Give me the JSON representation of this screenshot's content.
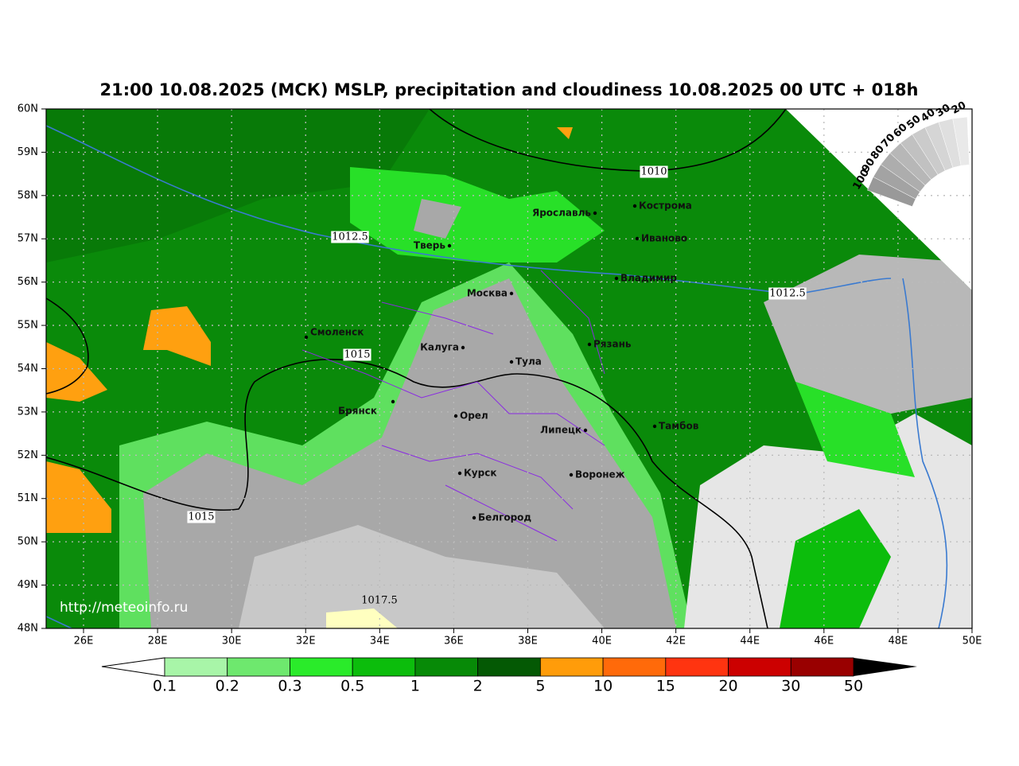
{
  "header": {
    "title": "21:00 10.08.2025 (МСК) MSLP, precipitation and cloudiness 10.08.2025 00 UTC + 018h"
  },
  "map": {
    "lat_ticks": [
      "48N",
      "49N",
      "50N",
      "51N",
      "52N",
      "53N",
      "54N",
      "55N",
      "56N",
      "57N",
      "58N",
      "59N",
      "60N"
    ],
    "lon_ticks": [
      "26E",
      "28E",
      "30E",
      "32E",
      "34E",
      "36E",
      "38E",
      "40E",
      "42E",
      "44E",
      "46E",
      "48E",
      "50E"
    ],
    "isobar_labels": [
      "1010",
      "1012.5",
      "1012.5",
      "1015",
      "1015",
      "1017.5"
    ],
    "cities": [
      "Ярославль",
      "Кострома",
      "Иваново",
      "Тверь",
      "Владимир",
      "Москва",
      "Смоленск",
      "Рязань",
      "Калуга",
      "Тула",
      "Брянск",
      "Орел",
      "Липецк",
      "Тамбов",
      "Курск",
      "Воронеж",
      "Белгород"
    ],
    "watermark": "http://meteoinfo.ru"
  },
  "cloud_scale": {
    "labels": [
      "100",
      "90",
      "80",
      "70",
      "60",
      "50",
      "40",
      "30",
      "20"
    ]
  },
  "colorbar": {
    "labels": [
      "0.1",
      "0.2",
      "0.3",
      "0.5",
      "1",
      "2",
      "5",
      "10",
      "15",
      "20",
      "30",
      "50"
    ]
  }
}
